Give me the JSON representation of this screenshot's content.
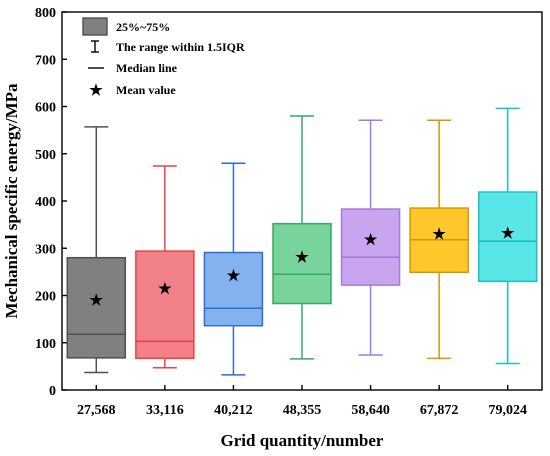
{
  "chart_data": {
    "type": "box",
    "xlabel": "Grid quantity/number",
    "ylabel": "Mechanical specific energy/MPa",
    "ylim": [
      0,
      800
    ],
    "yticks": [
      0,
      100,
      200,
      300,
      400,
      500,
      600,
      700,
      800
    ],
    "grid": false,
    "legend_position": "top-left",
    "legend": {
      "box_label": "25%~75%",
      "whisker_label": "The range within 1.5IQR",
      "median_label": "Median line",
      "mean_label": "Mean value"
    },
    "categories": [
      "27,568",
      "33,116",
      "40,212",
      "48,355",
      "58,640",
      "67,872",
      "79,024"
    ],
    "boxes": [
      {
        "category": "27,568",
        "whisker_low": 37,
        "q1": 68,
        "median": 118,
        "q3": 280,
        "whisker_high": 557,
        "mean": 190,
        "edge_color": "#505050",
        "fill_color": "#808080"
      },
      {
        "category": "33,116",
        "whisker_low": 47,
        "q1": 67,
        "median": 103,
        "q3": 294,
        "whisker_high": 474,
        "mean": 215,
        "edge_color": "#e8424a",
        "fill_color": "#f28088"
      },
      {
        "category": "40,212",
        "whisker_low": 32,
        "q1": 136,
        "median": 173,
        "q3": 291,
        "whisker_high": 480,
        "mean": 242,
        "edge_color": "#2b6fd6",
        "fill_color": "#84b2ef"
      },
      {
        "category": "48,355",
        "whisker_low": 66,
        "q1": 183,
        "median": 245,
        "q3": 352,
        "whisker_high": 580,
        "mean": 281,
        "edge_color": "#36a86a",
        "fill_color": "#78d49c"
      },
      {
        "category": "58,640",
        "whisker_low": 74,
        "q1": 222,
        "median": 281,
        "q3": 383,
        "whisker_high": 571,
        "mean": 319,
        "edge_color": "#a47bdb",
        "fill_color": "#c9a5f0"
      },
      {
        "category": "67,872",
        "whisker_low": 67,
        "q1": 249,
        "median": 318,
        "q3": 385,
        "whisker_high": 571,
        "mean": 330,
        "edge_color": "#d29a00",
        "fill_color": "#ffc72c"
      },
      {
        "category": "79,024",
        "whisker_low": 56,
        "q1": 230,
        "median": 315,
        "q3": 419,
        "whisker_high": 596,
        "mean": 332,
        "edge_color": "#19c4c4",
        "fill_color": "#58e6e6"
      }
    ]
  }
}
